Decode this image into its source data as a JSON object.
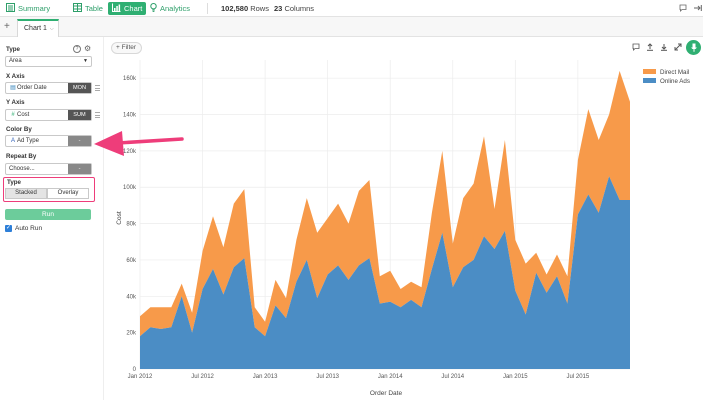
{
  "toolbar": {
    "summary": "Summary",
    "table": "Table",
    "chart": "Chart",
    "analytics": "Analytics",
    "rows_count": "102,580",
    "rows_label": "Rows",
    "cols_count": "23",
    "cols_label": "Columns"
  },
  "tabs": {
    "add": "+",
    "active": "Chart 1"
  },
  "panel": {
    "type_label": "Type",
    "type_value": "Area",
    "xaxis_label": "X Axis",
    "xaxis_field": "Order Date",
    "xaxis_agg": "MON",
    "yaxis_label": "Y Axis",
    "yaxis_field": "Cost",
    "yaxis_agg": "SUM",
    "colorby_label": "Color By",
    "colorby_field": "Ad Type",
    "colorby_agg": "-",
    "repeatby_label": "Repeat By",
    "repeatby_value": "Choose...",
    "repeatby_agg": "-",
    "stack_type_label": "Type",
    "stacked": "Stacked",
    "overlay": "Overlay",
    "run": "Run",
    "auto_run": "Auto Run"
  },
  "chart_header": {
    "filter": "Filter"
  },
  "colors": {
    "accent": "#2faf72",
    "direct_mail": "#f79a4a",
    "online_ads": "#4b8dc5",
    "highlight": "#ee3d7a"
  },
  "chart_data": {
    "type": "area",
    "stacked": true,
    "xlabel": "Order Date",
    "ylabel": "Cost",
    "ylim": [
      0,
      170000
    ],
    "yticks": [
      0,
      20000,
      40000,
      60000,
      80000,
      100000,
      120000,
      140000,
      160000
    ],
    "ytick_labels": [
      "0",
      "20k",
      "40k",
      "60k",
      "80k",
      "100k",
      "120k",
      "140k",
      "160k"
    ],
    "xtick_labels": [
      "Jan 2012",
      "Jul 2012",
      "Jan 2013",
      "Jul 2013",
      "Jan 2014",
      "Jul 2014",
      "Jan 2015",
      "Jul 2015"
    ],
    "xtick_index": [
      0,
      6,
      12,
      18,
      24,
      30,
      36,
      42
    ],
    "legend_position": "top-right",
    "x": [
      "2012-01",
      "2012-02",
      "2012-03",
      "2012-04",
      "2012-05",
      "2012-06",
      "2012-07",
      "2012-08",
      "2012-09",
      "2012-10",
      "2012-11",
      "2012-12",
      "2013-01",
      "2013-02",
      "2013-03",
      "2013-04",
      "2013-05",
      "2013-06",
      "2013-07",
      "2013-08",
      "2013-09",
      "2013-10",
      "2013-11",
      "2013-12",
      "2014-01",
      "2014-02",
      "2014-03",
      "2014-04",
      "2014-05",
      "2014-06",
      "2014-07",
      "2014-08",
      "2014-09",
      "2014-10",
      "2014-11",
      "2014-12",
      "2015-01",
      "2015-02",
      "2015-03",
      "2015-04",
      "2015-05",
      "2015-06",
      "2015-07",
      "2015-08",
      "2015-09",
      "2015-10",
      "2015-11",
      "2015-12"
    ],
    "series": [
      {
        "name": "Online Ads",
        "values": [
          18000,
          23000,
          22000,
          23000,
          40000,
          20000,
          44000,
          55000,
          41000,
          56000,
          61000,
          23000,
          18000,
          35000,
          28000,
          48000,
          60000,
          39000,
          52000,
          57000,
          49000,
          57000,
          61000,
          36000,
          37000,
          34000,
          38000,
          34000,
          55000,
          75000,
          45000,
          56000,
          60000,
          73000,
          66000,
          76000,
          43000,
          30000,
          53000,
          42000,
          51000,
          36000,
          85000,
          96000,
          86000,
          106000,
          93000,
          93000
        ]
      },
      {
        "name": "Direct Mail",
        "values": [
          11000,
          11000,
          12000,
          11000,
          7000,
          11000,
          21000,
          29000,
          26000,
          35000,
          38000,
          11000,
          8000,
          14000,
          11000,
          23000,
          34000,
          36000,
          31000,
          34000,
          31000,
          41000,
          43000,
          15000,
          17000,
          10000,
          10000,
          11000,
          31000,
          45000,
          24000,
          38000,
          42000,
          55000,
          22000,
          50000,
          28000,
          28000,
          11000,
          10000,
          12000,
          15000,
          30000,
          47000,
          40000,
          34000,
          71000,
          54000
        ]
      }
    ]
  }
}
